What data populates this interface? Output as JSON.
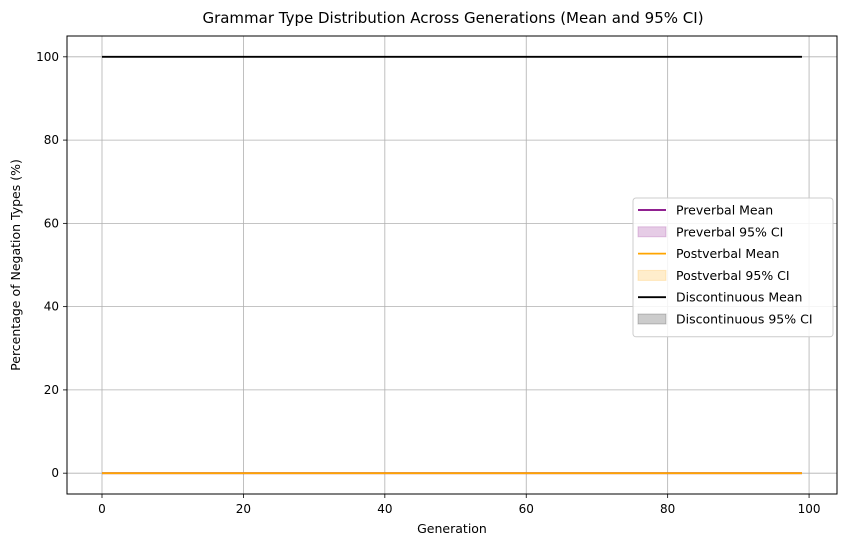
{
  "chart_data": {
    "type": "line",
    "title": "Grammar Type Distribution Across Generations (Mean and 95% CI)",
    "xlabel": "Generation",
    "ylabel": "Percentage of Negation Types (%)",
    "xlim": [
      -4.95,
      103.95
    ],
    "ylim": [
      -5,
      105
    ],
    "x_ticks": [
      0,
      20,
      40,
      60,
      80,
      100
    ],
    "y_ticks": [
      0,
      20,
      40,
      60,
      80,
      100
    ],
    "grid": true,
    "legend_position": "center-right",
    "x_range": [
      0,
      99
    ],
    "series": [
      {
        "name": "Preverbal Mean",
        "kind": "line",
        "color": "#800080",
        "constant": 0
      },
      {
        "name": "Preverbal 95% CI",
        "kind": "band",
        "color": "#800080",
        "lower": 0,
        "upper": 0
      },
      {
        "name": "Postverbal Mean",
        "kind": "line",
        "color": "#ffa500",
        "constant": 0
      },
      {
        "name": "Postverbal 95% CI",
        "kind": "band",
        "color": "#ffa500",
        "lower": 0,
        "upper": 0
      },
      {
        "name": "Discontinuous Mean",
        "kind": "line",
        "color": "#000000",
        "constant": 100
      },
      {
        "name": "Discontinuous 95% CI",
        "kind": "band",
        "color": "#000000",
        "lower": 100,
        "upper": 100
      }
    ]
  }
}
